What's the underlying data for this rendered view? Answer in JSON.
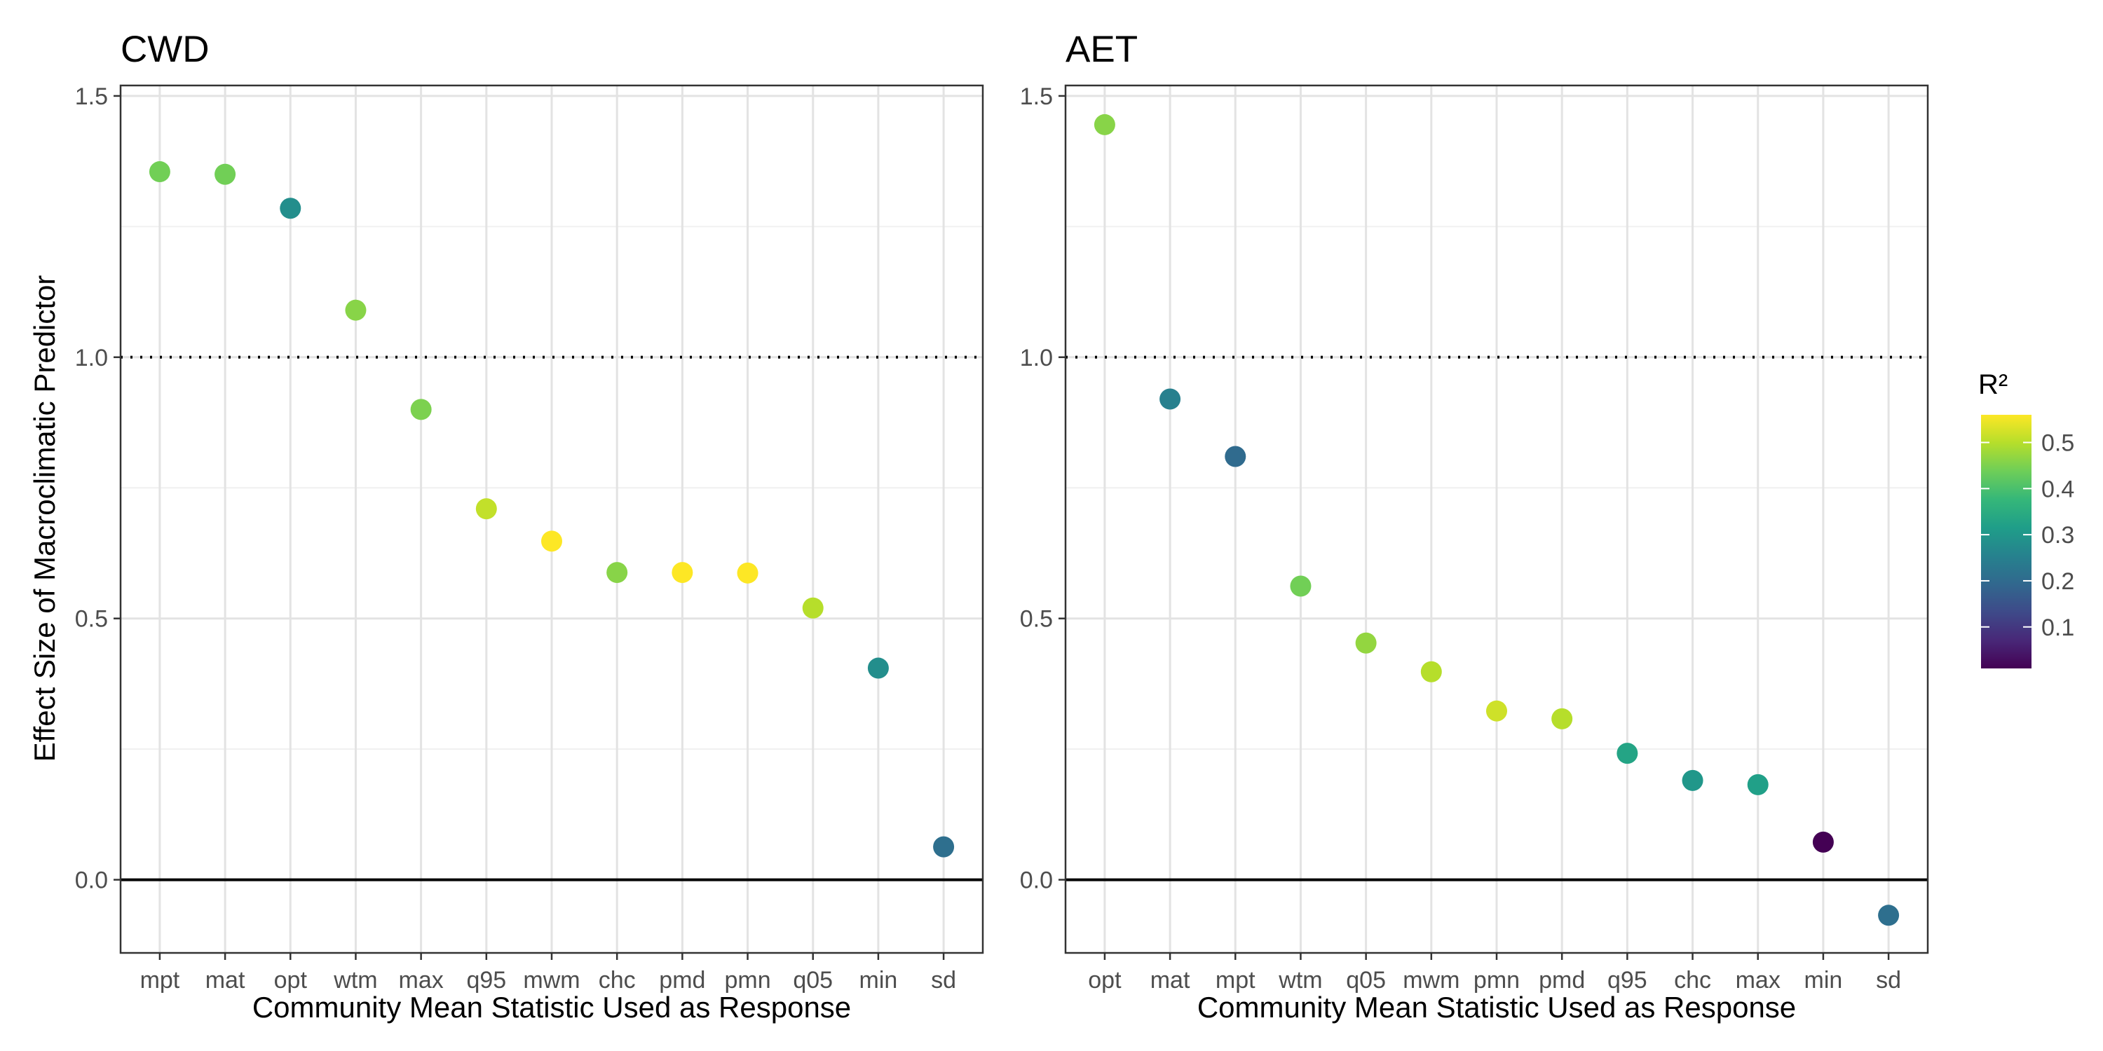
{
  "figure": {
    "ylabel": "Effect Size of Macroclimatic Predictor",
    "xlabel": "Community Mean Statistic Used as Response",
    "legend_title": "R²",
    "legend_ticks": [
      0.1,
      0.2,
      0.3,
      0.4,
      0.5
    ],
    "legend_range": [
      0.01,
      0.56
    ],
    "colormap": "viridis",
    "colormap_stops": [
      "#440154",
      "#482878",
      "#3e4a89",
      "#31688e",
      "#26828e",
      "#1f9e89",
      "#35b779",
      "#6ece58",
      "#b5de2b",
      "#fde725"
    ],
    "grid": true,
    "legend_position": "right"
  },
  "chart_data": [
    {
      "type": "scatter",
      "title": "CWD",
      "categories": [
        "mpt",
        "mat",
        "opt",
        "wtm",
        "max",
        "q95",
        "mwm",
        "chc",
        "pmd",
        "pmn",
        "q05",
        "min",
        "sd"
      ],
      "values": [
        1.355,
        1.35,
        1.285,
        1.09,
        0.9,
        0.71,
        0.648,
        0.588,
        0.588,
        0.587,
        0.52,
        0.405,
        0.063
      ],
      "r2": [
        0.44,
        0.44,
        0.28,
        0.46,
        0.45,
        0.51,
        0.56,
        0.46,
        0.56,
        0.56,
        0.5,
        0.28,
        0.21
      ],
      "ylim": [
        -0.14,
        1.52
      ],
      "yticks": [
        0.0,
        0.5,
        1.0,
        1.5
      ],
      "reference_lines": [
        {
          "y": 1.0,
          "style": "dotted"
        },
        {
          "y": 0.0,
          "style": "solid"
        }
      ]
    },
    {
      "type": "scatter",
      "title": "AET",
      "categories": [
        "opt",
        "mat",
        "mpt",
        "wtm",
        "q05",
        "mwm",
        "pmn",
        "pmd",
        "q95",
        "chc",
        "max",
        "min",
        "sd"
      ],
      "values": [
        1.445,
        0.92,
        0.81,
        0.562,
        0.453,
        0.398,
        0.323,
        0.308,
        0.242,
        0.19,
        0.182,
        0.072,
        -0.068
      ],
      "r2": [
        0.46,
        0.25,
        0.2,
        0.44,
        0.47,
        0.5,
        0.52,
        0.5,
        0.33,
        0.3,
        0.32,
        0.01,
        0.21
      ],
      "ylim": [
        -0.14,
        1.52
      ],
      "yticks": [
        0.0,
        0.5,
        1.0,
        1.5
      ],
      "reference_lines": [
        {
          "y": 1.0,
          "style": "dotted"
        },
        {
          "y": 0.0,
          "style": "solid"
        }
      ]
    }
  ]
}
